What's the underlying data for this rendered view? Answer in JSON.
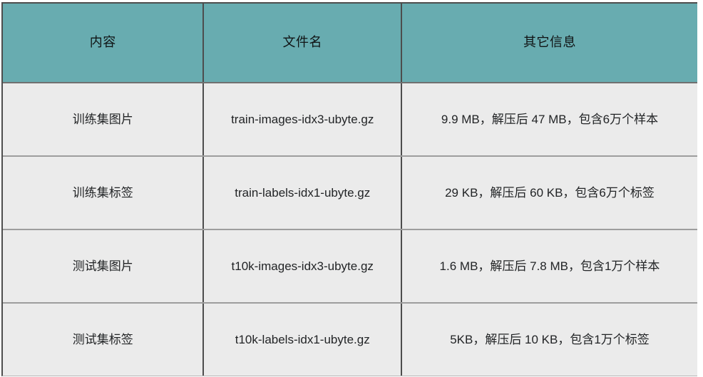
{
  "colors": {
    "header_bg": "#68acb0",
    "body_bg": "#ebebeb",
    "border_dark": "#4d4d4d",
    "divider_header": "#707070",
    "divider_row": "#9d9d9d",
    "bottom_line": "#b7b7b7",
    "text_color": "#1c1c1e"
  },
  "table": {
    "columns": [
      {
        "key": "content",
        "label": "内容"
      },
      {
        "key": "filename",
        "label": "文件名"
      },
      {
        "key": "info",
        "label": "其它信息"
      }
    ],
    "rows": [
      {
        "content": "训练集图片",
        "filename": "train-images-idx3-ubyte.gz",
        "info": "9.9 MB，解压后 47 MB，包含6万个样本"
      },
      {
        "content": "训练集标签",
        "filename": "train-labels-idx1-ubyte.gz",
        "info": "29 KB，解压后 60 KB，包含6万个标签"
      },
      {
        "content": "测试集图片",
        "filename": "t10k-images-idx3-ubyte.gz",
        "info": "1.6 MB，解压后 7.8 MB，包含1万个样本"
      },
      {
        "content": "测试集标签",
        "filename": "t10k-labels-idx1-ubyte.gz",
        "info": "5KB，解压后 10 KB，包含1万个标签"
      }
    ]
  }
}
